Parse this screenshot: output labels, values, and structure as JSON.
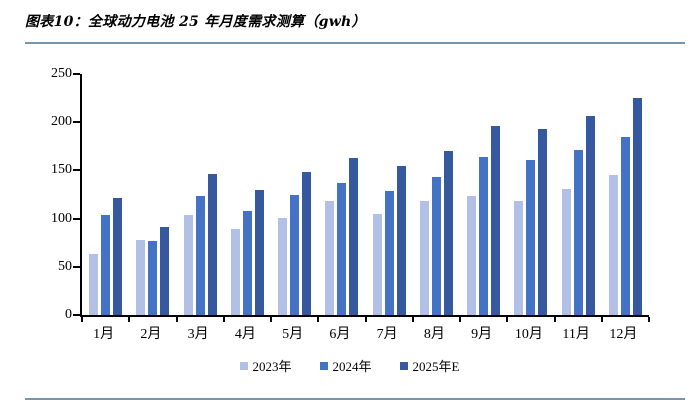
{
  "header": {
    "title": "图表10：全球动力电池 25 年月度需求测算（gwh）"
  },
  "colors": {
    "divider": "#7695b2",
    "axis": "#000000",
    "series": [
      "#b1c0e4",
      "#4472c4",
      "#35589e"
    ]
  },
  "chart_data": {
    "type": "bar",
    "title": "全球动力电池 25 年月度需求测算（gwh）",
    "xlabel": "",
    "ylabel": "",
    "categories": [
      "1月",
      "2月",
      "3月",
      "4月",
      "5月",
      "6月",
      "7月",
      "8月",
      "9月",
      "10月",
      "11月",
      "12月"
    ],
    "series": [
      {
        "name": "2023年",
        "color": "#b1c0e4",
        "values": [
          63,
          78,
          104,
          89,
          101,
          118,
          105,
          118,
          123,
          118,
          131,
          145
        ]
      },
      {
        "name": "2024年",
        "color": "#4472c4",
        "values": [
          104,
          77,
          123,
          108,
          125,
          137,
          129,
          143,
          164,
          161,
          171,
          185
        ]
      },
      {
        "name": "2025年E",
        "color": "#35589e",
        "values": [
          121,
          91,
          146,
          130,
          148,
          163,
          155,
          170,
          196,
          193,
          206,
          225
        ]
      }
    ],
    "ylim": [
      0,
      250
    ],
    "yticks": [
      0,
      50,
      100,
      150,
      200,
      250
    ],
    "grid": false,
    "legend_position": "bottom"
  }
}
